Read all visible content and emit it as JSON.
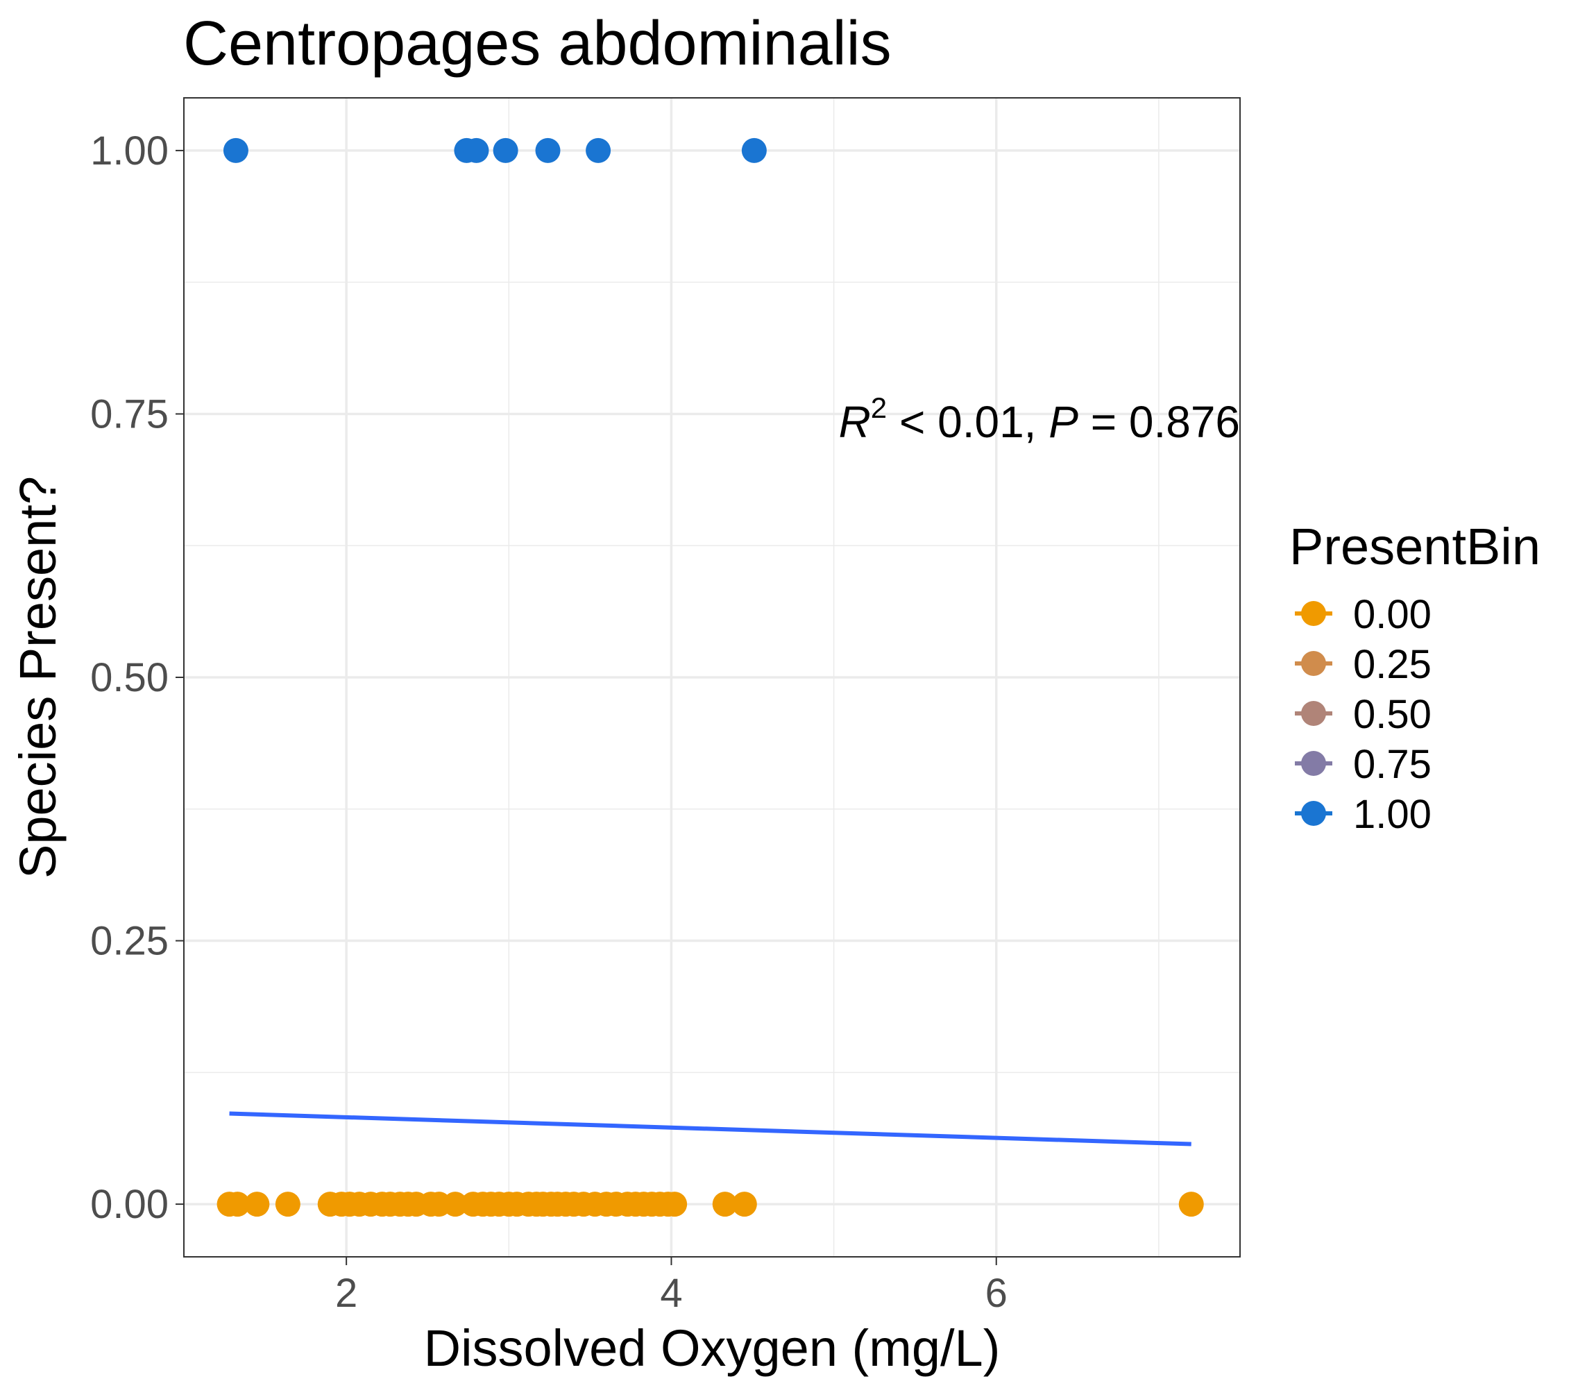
{
  "chart_data": {
    "type": "scatter",
    "title": "Centropages abdominalis",
    "xlabel": "Dissolved Oxygen (mg/L)",
    "ylabel": "Species Present?",
    "xlim": [
      1.0,
      7.5
    ],
    "ylim": [
      -0.05,
      1.05
    ],
    "x_ticks": [
      2,
      4,
      6
    ],
    "x_tick_labels": [
      "2",
      "4",
      "6"
    ],
    "y_ticks": [
      0,
      0.25,
      0.5,
      0.75,
      1.0
    ],
    "y_tick_labels": [
      "0.00",
      "0.25",
      "0.50",
      "0.75",
      "1.00"
    ],
    "grid": true,
    "legend": {
      "title": "PresentBin",
      "placement": "right",
      "entries": [
        {
          "label": "0.00",
          "color": "#f09a00"
        },
        {
          "label": "0.25",
          "color": "#d08c4c"
        },
        {
          "label": "0.50",
          "color": "#b08478"
        },
        {
          "label": "0.75",
          "color": "#837ba6"
        },
        {
          "label": "1.00",
          "color": "#1a75d2"
        }
      ]
    },
    "series": [
      {
        "name": "0.00",
        "color": "#f09a00",
        "x": [
          1.28,
          1.33,
          1.45,
          1.64,
          1.9,
          1.97,
          2.02,
          2.08,
          2.15,
          2.22,
          2.27,
          2.33,
          2.38,
          2.43,
          2.52,
          2.57,
          2.67,
          2.78,
          2.84,
          2.89,
          2.94,
          3.0,
          3.05,
          3.12,
          3.17,
          3.21,
          3.26,
          3.3,
          3.35,
          3.4,
          3.46,
          3.53,
          3.6,
          3.66,
          3.73,
          3.78,
          3.83,
          3.88,
          3.93,
          3.98,
          4.02,
          4.33,
          4.45,
          7.2
        ],
        "y": [
          0,
          0,
          0,
          0,
          0,
          0,
          0,
          0,
          0,
          0,
          0,
          0,
          0,
          0,
          0,
          0,
          0,
          0,
          0,
          0,
          0,
          0,
          0,
          0,
          0,
          0,
          0,
          0,
          0,
          0,
          0,
          0,
          0,
          0,
          0,
          0,
          0,
          0,
          0,
          0,
          0,
          0,
          0,
          0
        ]
      },
      {
        "name": "1.00",
        "color": "#1a75d2",
        "x": [
          1.32,
          2.74,
          2.8,
          2.98,
          3.24,
          3.55,
          4.51
        ],
        "y": [
          1,
          1,
          1,
          1,
          1,
          1,
          1
        ]
      }
    ],
    "fit_line": {
      "color": "#3366ff",
      "x": [
        1.28,
        7.2
      ],
      "y": [
        0.086,
        0.057
      ]
    },
    "annotation": {
      "r_symbol": "R",
      "r_exponent": "2",
      "r_relation": " < 0.01, ",
      "p_symbol": "P",
      "p_relation": " = 0.876"
    }
  }
}
